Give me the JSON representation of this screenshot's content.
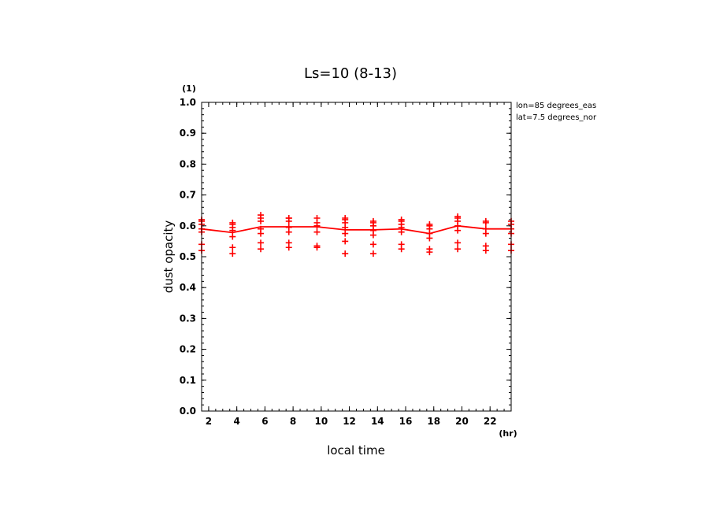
{
  "chart_data": {
    "type": "line",
    "title": "Ls=10 (8-13)",
    "xlabel": "local time",
    "ylabel": "dust opacity",
    "x_unit": "(hr)",
    "y_unit": "(1)",
    "xlim": [
      1.5,
      23.5
    ],
    "ylim": [
      0.0,
      1.0
    ],
    "x_ticks": [
      "2",
      "4",
      "6",
      "8",
      "10",
      "12",
      "14",
      "16",
      "18",
      "20",
      "22"
    ],
    "y_ticks": [
      "0.0",
      "0.1",
      "0.2",
      "0.3",
      "0.4",
      "0.5",
      "0.6",
      "0.7",
      "0.8",
      "0.9",
      "1.0"
    ],
    "annotations": [
      "lon=85 degrees_eas",
      "lat=7.5 degrees_nor"
    ],
    "color": "#ff0000",
    "series": [
      {
        "x": [
          1.5,
          3.7,
          5.7,
          7.7,
          9.7,
          11.7,
          13.7,
          15.7,
          17.7,
          19.7,
          21.7,
          23.5
        ],
        "values": [
          0.59,
          0.578,
          0.597,
          0.597,
          0.597,
          0.587,
          0.587,
          0.59,
          0.575,
          0.6,
          0.59,
          0.59
        ]
      }
    ],
    "samples": [
      {
        "x": 1.5,
        "values": [
          0.52,
          0.54,
          0.58,
          0.59,
          0.605,
          0.615,
          0.62
        ]
      },
      {
        "x": 3.7,
        "values": [
          0.51,
          0.53,
          0.565,
          0.585,
          0.595,
          0.605,
          0.61
        ]
      },
      {
        "x": 5.7,
        "values": [
          0.525,
          0.545,
          0.575,
          0.59,
          0.615,
          0.625,
          0.635
        ]
      },
      {
        "x": 7.7,
        "values": [
          0.53,
          0.545,
          0.58,
          0.595,
          0.615,
          0.625,
          0.625
        ]
      },
      {
        "x": 9.7,
        "values": [
          0.53,
          0.535,
          0.58,
          0.6,
          0.61,
          0.625
        ]
      },
      {
        "x": 11.7,
        "values": [
          0.51,
          0.55,
          0.575,
          0.595,
          0.61,
          0.62,
          0.625
        ]
      },
      {
        "x": 13.7,
        "values": [
          0.51,
          0.54,
          0.57,
          0.585,
          0.6,
          0.61,
          0.615
        ]
      },
      {
        "x": 15.7,
        "values": [
          0.525,
          0.54,
          0.58,
          0.595,
          0.605,
          0.615,
          0.62
        ]
      },
      {
        "x": 17.7,
        "values": [
          0.515,
          0.525,
          0.56,
          0.575,
          0.59,
          0.6,
          0.605
        ]
      },
      {
        "x": 19.7,
        "values": [
          0.525,
          0.545,
          0.585,
          0.6,
          0.615,
          0.625,
          0.63
        ]
      },
      {
        "x": 21.7,
        "values": [
          0.52,
          0.535,
          0.575,
          0.59,
          0.61,
          0.615
        ]
      },
      {
        "x": 23.5,
        "values": [
          0.52,
          0.54,
          0.575,
          0.59,
          0.605,
          0.615
        ]
      }
    ]
  }
}
